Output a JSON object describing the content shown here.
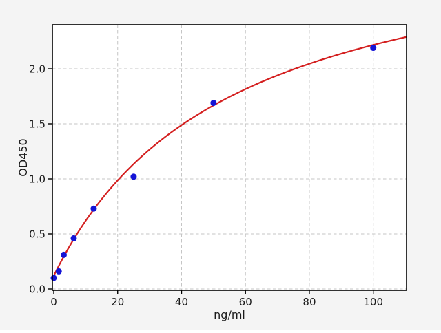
{
  "chart_data": {
    "type": "scatter",
    "title": "",
    "xlabel": "ng/ml",
    "ylabel": "OD450",
    "xlim": [
      -0.5,
      110.4
    ],
    "ylim": [
      0,
      2.4
    ],
    "grid": true,
    "legend": "none",
    "x_axis": {
      "label": "ng/ml",
      "ticks": [
        {
          "value": 0,
          "label": "0"
        },
        {
          "value": 20,
          "label": "20"
        },
        {
          "value": 40,
          "label": "40"
        },
        {
          "value": 60,
          "label": "60"
        },
        {
          "value": 80,
          "label": "80"
        },
        {
          "value": 100,
          "label": "100"
        }
      ]
    },
    "y_axis": {
      "label": "OD450",
      "ticks": [
        {
          "value": 0.0,
          "label": "0.0"
        },
        {
          "value": 0.5,
          "label": "0.5"
        },
        {
          "value": 1.0,
          "label": "1.0"
        },
        {
          "value": 1.5,
          "label": "1.5"
        },
        {
          "value": 2.0,
          "label": "2.0"
        }
      ]
    },
    "points": [
      {
        "x": 0,
        "y": 0.1
      },
      {
        "x": 1.5625,
        "y": 0.16
      },
      {
        "x": 3.125,
        "y": 0.31
      },
      {
        "x": 6.25,
        "y": 0.46
      },
      {
        "x": 12.5,
        "y": 0.73
      },
      {
        "x": 25,
        "y": 1.02
      },
      {
        "x": 50,
        "y": 1.69
      },
      {
        "x": 100,
        "y": 2.19
      }
    ],
    "fit_curve": {
      "description": "saturation binding fit",
      "formula": "y = c + a*x/(b+x)",
      "params": {
        "a": 3.25,
        "b": 55,
        "c": 0.12
      },
      "x_range": [
        0,
        110.4
      ]
    },
    "colors": {
      "point": "#1414d6",
      "curve": "#d42020",
      "grid": "#c4c4c4",
      "figure_background": "#f4f4f4",
      "plot_background": "#ffffff",
      "axis": "#000000",
      "text": "#1a1a1a"
    }
  }
}
